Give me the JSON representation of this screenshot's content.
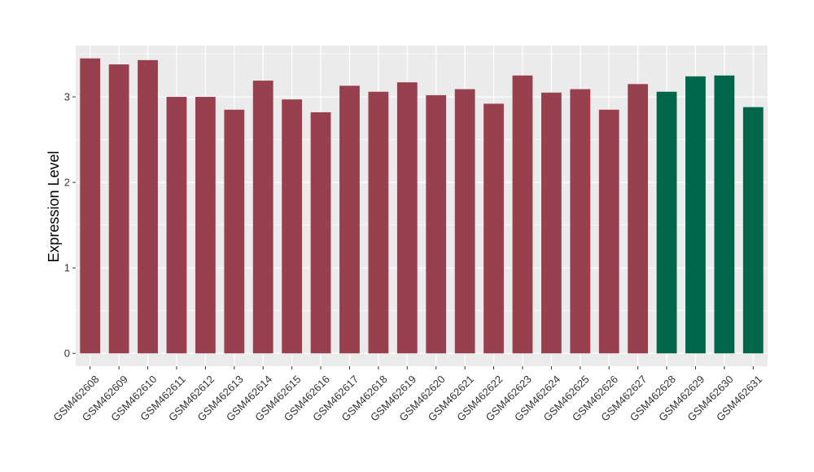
{
  "chart_data": {
    "type": "bar",
    "title": "",
    "xlabel": "",
    "ylabel": "Expression Level",
    "ylim": [
      -0.15,
      3.6
    ],
    "yticks": [
      0,
      1,
      2,
      3
    ],
    "grid": true,
    "legend": "none",
    "categories": [
      "GSM462608",
      "GSM462609",
      "GSM462610",
      "GSM462611",
      "GSM462612",
      "GSM462613",
      "GSM462614",
      "GSM462615",
      "GSM462616",
      "GSM462617",
      "GSM462618",
      "GSM462619",
      "GSM462620",
      "GSM462621",
      "GSM462622",
      "GSM462623",
      "GSM462624",
      "GSM462625",
      "GSM462626",
      "GSM462627",
      "GSM462628",
      "GSM462629",
      "GSM462630",
      "GSM462631"
    ],
    "values": [
      3.45,
      3.38,
      3.43,
      3.0,
      3.0,
      2.85,
      3.19,
      2.97,
      2.82,
      3.13,
      3.06,
      3.17,
      3.02,
      3.09,
      2.92,
      3.25,
      3.05,
      3.09,
      2.85,
      3.15,
      3.06,
      3.24,
      3.25,
      2.88
    ],
    "groups": [
      "a",
      "a",
      "a",
      "a",
      "a",
      "a",
      "a",
      "a",
      "a",
      "a",
      "a",
      "a",
      "a",
      "a",
      "a",
      "a",
      "a",
      "a",
      "a",
      "a",
      "b",
      "b",
      "b",
      "b"
    ],
    "colors": {
      "a": "#99404f",
      "b": "#00664a"
    },
    "panel_background": "#ebebeb",
    "grid_color": "#ffffff"
  }
}
